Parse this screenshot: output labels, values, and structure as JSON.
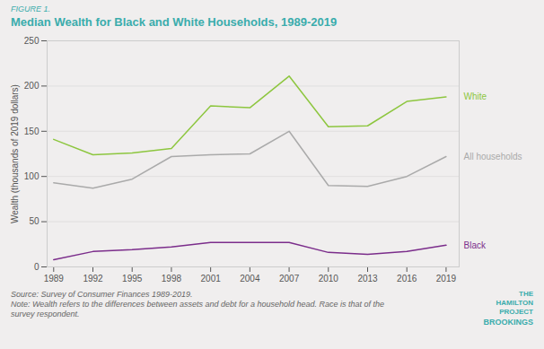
{
  "chart_data": {
    "type": "line",
    "title": "Median Wealth for Black and White Households, 1989-2019",
    "annotations": [
      "FIGURE 1.",
      "Source: Survey of Consumer Finances 1989-2019.",
      "Note: Wealth refers to the differences between assets and debt for a household head. Race is that of the survey respondent.",
      "THE\nHAMILTON\nPROJECT",
      "BROOKINGS"
    ],
    "ylabel": "Wealth (thousands of 2019 dollars)",
    "x": [
      1989,
      1992,
      1995,
      1998,
      2001,
      2004,
      2007,
      2010,
      2013,
      2016,
      2019
    ],
    "series": [
      {
        "name": "White",
        "color": "#8dc63f",
        "values": [
          141,
          124,
          126,
          131,
          178,
          176,
          211,
          155,
          156,
          183,
          188
        ]
      },
      {
        "name": "All households",
        "color": "#aaaaaa",
        "values": [
          93,
          87,
          97,
          122,
          124,
          125,
          150,
          90,
          89,
          100,
          122
        ]
      },
      {
        "name": "Black",
        "color": "#7b2d8b",
        "values": [
          8,
          17,
          19,
          22,
          27,
          27,
          27,
          16,
          14,
          17,
          24
        ]
      }
    ],
    "xlim": [
      1988.5,
      2020
    ],
    "xticks": [
      1989,
      1992,
      1995,
      1998,
      2001,
      2004,
      2007,
      2010,
      2013,
      2016,
      2019
    ],
    "ylim": [
      0,
      250
    ],
    "yticks": [
      0,
      50,
      100,
      150,
      200,
      250
    ],
    "grid": true
  }
}
